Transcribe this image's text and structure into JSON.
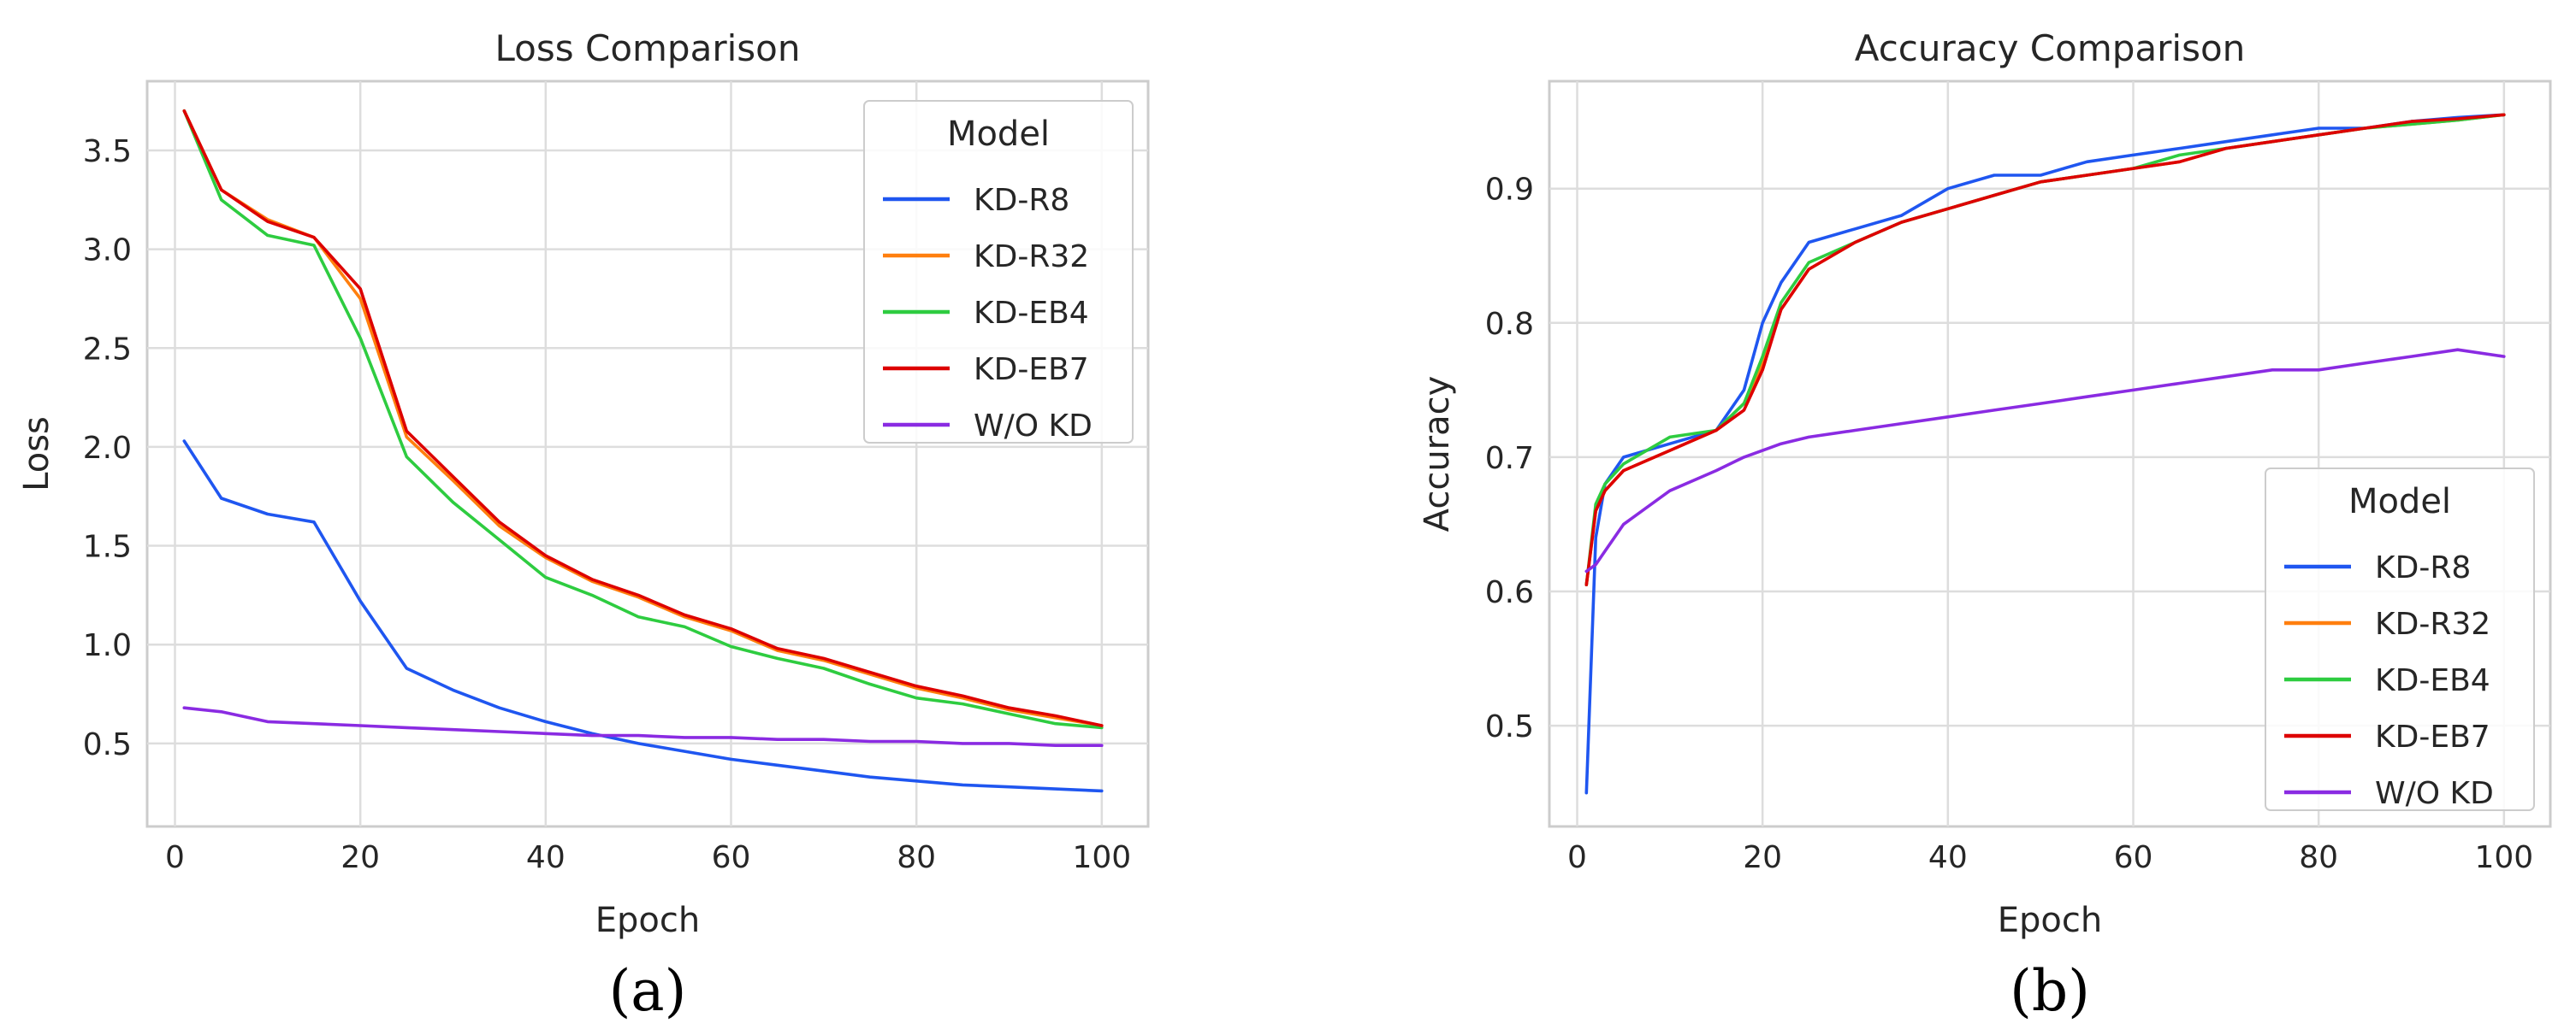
{
  "colors": {
    "KD-R8": "#1f56f0",
    "KD-R32": "#ff7f0e",
    "KD-EB4": "#2ecc40",
    "KD-EB7": "#dd0000",
    "W/O KD": "#8a2be2"
  },
  "chart_data": [
    {
      "type": "line",
      "title": "Loss Comparison",
      "xlabel": "Epoch",
      "ylabel": "Loss",
      "panel_label": "(a)",
      "xlim": [
        -3,
        105
      ],
      "ylim": [
        0.08,
        3.85
      ],
      "xticks": [
        0,
        20,
        40,
        60,
        80,
        100
      ],
      "yticks": [
        0.5,
        1.0,
        1.5,
        2.0,
        2.5,
        3.0,
        3.5
      ],
      "xtick_labels": [
        "0",
        "20",
        "40",
        "60",
        "80",
        "100"
      ],
      "ytick_labels": [
        "0.5",
        "1.0",
        "1.5",
        "2.0",
        "2.5",
        "3.0",
        "3.5"
      ],
      "grid": true,
      "legend": {
        "title": "Model",
        "position": "top-right"
      },
      "x": [
        1,
        5,
        10,
        15,
        20,
        25,
        30,
        35,
        40,
        45,
        50,
        55,
        60,
        65,
        70,
        75,
        80,
        85,
        90,
        95,
        100
      ],
      "series": [
        {
          "name": "KD-R8",
          "values": [
            2.03,
            1.74,
            1.66,
            1.62,
            1.22,
            0.88,
            0.77,
            0.68,
            0.61,
            0.55,
            0.5,
            0.46,
            0.42,
            0.39,
            0.36,
            0.33,
            0.31,
            0.29,
            0.28,
            0.27,
            0.26
          ]
        },
        {
          "name": "KD-R32",
          "values": [
            3.7,
            3.3,
            3.15,
            3.06,
            2.75,
            2.05,
            1.83,
            1.6,
            1.44,
            1.32,
            1.24,
            1.14,
            1.07,
            0.97,
            0.92,
            0.85,
            0.78,
            0.73,
            0.67,
            0.63,
            0.59
          ]
        },
        {
          "name": "KD-EB4",
          "values": [
            3.7,
            3.25,
            3.07,
            3.02,
            2.55,
            1.95,
            1.72,
            1.53,
            1.34,
            1.25,
            1.14,
            1.09,
            0.99,
            0.93,
            0.88,
            0.8,
            0.73,
            0.7,
            0.65,
            0.6,
            0.58
          ]
        },
        {
          "name": "KD-EB7",
          "values": [
            3.7,
            3.3,
            3.14,
            3.06,
            2.8,
            2.08,
            1.85,
            1.62,
            1.45,
            1.33,
            1.25,
            1.15,
            1.08,
            0.98,
            0.93,
            0.86,
            0.79,
            0.74,
            0.68,
            0.64,
            0.59
          ]
        },
        {
          "name": "W/O KD",
          "values": [
            0.68,
            0.66,
            0.61,
            0.6,
            0.59,
            0.58,
            0.57,
            0.56,
            0.55,
            0.54,
            0.54,
            0.53,
            0.53,
            0.52,
            0.52,
            0.51,
            0.51,
            0.5,
            0.5,
            0.49,
            0.49
          ]
        }
      ]
    },
    {
      "type": "line",
      "title": "Accuracy Comparison",
      "xlabel": "Epoch",
      "ylabel": "Accuracy",
      "panel_label": "(b)",
      "xlim": [
        -3,
        105
      ],
      "ylim": [
        0.425,
        0.98
      ],
      "xticks": [
        0,
        20,
        40,
        60,
        80,
        100
      ],
      "yticks": [
        0.5,
        0.6,
        0.7,
        0.8,
        0.9
      ],
      "xtick_labels": [
        "0",
        "20",
        "40",
        "60",
        "80",
        "100"
      ],
      "ytick_labels": [
        "0.5",
        "0.6",
        "0.7",
        "0.8",
        "0.9"
      ],
      "grid": true,
      "legend": {
        "title": "Model",
        "position": "bottom-right"
      },
      "x": [
        1,
        2,
        3,
        5,
        10,
        15,
        18,
        20,
        22,
        25,
        30,
        35,
        40,
        45,
        50,
        55,
        60,
        65,
        70,
        75,
        80,
        85,
        90,
        95,
        100
      ],
      "series": [
        {
          "name": "KD-R8",
          "values": [
            0.45,
            0.64,
            0.68,
            0.7,
            0.71,
            0.72,
            0.75,
            0.8,
            0.83,
            0.86,
            0.87,
            0.88,
            0.9,
            0.91,
            0.91,
            0.92,
            0.925,
            0.93,
            0.935,
            0.94,
            0.945,
            0.945,
            0.95,
            0.953,
            0.955
          ]
        },
        {
          "name": "KD-R32",
          "values": [
            0.605,
            0.66,
            0.675,
            0.69,
            0.705,
            0.72,
            0.74,
            0.77,
            0.81,
            0.84,
            0.86,
            0.875,
            0.885,
            0.895,
            0.905,
            0.91,
            0.915,
            0.92,
            0.93,
            0.935,
            0.94,
            0.945,
            0.948,
            0.951,
            0.955
          ]
        },
        {
          "name": "KD-EB4",
          "values": [
            0.605,
            0.665,
            0.68,
            0.695,
            0.715,
            0.72,
            0.74,
            0.775,
            0.815,
            0.845,
            0.86,
            0.875,
            0.885,
            0.895,
            0.905,
            0.91,
            0.915,
            0.925,
            0.93,
            0.935,
            0.94,
            0.945,
            0.948,
            0.951,
            0.955
          ]
        },
        {
          "name": "KD-EB7",
          "values": [
            0.605,
            0.66,
            0.675,
            0.69,
            0.705,
            0.72,
            0.735,
            0.765,
            0.81,
            0.84,
            0.86,
            0.875,
            0.885,
            0.895,
            0.905,
            0.91,
            0.915,
            0.92,
            0.93,
            0.935,
            0.94,
            0.945,
            0.95,
            0.952,
            0.955
          ]
        },
        {
          "name": "W/O KD",
          "values": [
            0.615,
            0.62,
            0.63,
            0.65,
            0.675,
            0.69,
            0.7,
            0.705,
            0.71,
            0.715,
            0.72,
            0.725,
            0.73,
            0.735,
            0.74,
            0.745,
            0.75,
            0.755,
            0.76,
            0.765,
            0.765,
            0.77,
            0.775,
            0.78,
            0.775
          ]
        }
      ]
    }
  ]
}
